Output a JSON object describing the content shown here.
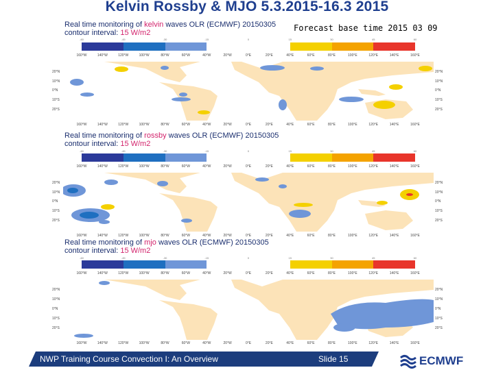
{
  "slide": {
    "title": "Kelvin Rossby & MJO 5.3.2015-16.3 2015",
    "forecast_label": "Forecast base time 2015 03 09",
    "footer_text": "NWP Training Course Convection I: An Overview",
    "slide_number": "Slide 15",
    "logo_text": "ECMWF"
  },
  "panels": [
    {
      "id": "kelvin",
      "head_prefix": "Real time monitoring of ",
      "kind": "kelvin",
      "head_suffix": " waves OLR (ECMWF) 20150305",
      "contour_prefix": "contour interval: ",
      "unit": "15 W/m2"
    },
    {
      "id": "rossby",
      "head_prefix": "Real time monitoring of ",
      "kind": "rossby",
      "head_suffix": " waves OLR (ECMWF) 20150305",
      "contour_prefix": "contour interval: ",
      "unit": "15 W/m2"
    },
    {
      "id": "mjo",
      "head_prefix": "Real time monitoring of ",
      "kind": "mjo",
      "head_suffix": " waves OLR (ECMWF) 20150305",
      "contour_prefix": "contour interval: ",
      "unit": "15 W/m2"
    }
  ],
  "colorbar": {
    "colors": [
      "#2b3a9a",
      "#1f6fc0",
      "#6f96d8",
      "#ffffff",
      "#ffffff",
      "#f4d000",
      "#f4a300",
      "#e8352b"
    ],
    "ticks": [
      "-60",
      "-45",
      "-30",
      "-15",
      "0",
      "15",
      "30",
      "45",
      "60"
    ]
  },
  "map": {
    "lon_labels": [
      "160°W",
      "140°W",
      "120°W",
      "100°W",
      "80°W",
      "60°W",
      "40°W",
      "20°W",
      "0°E",
      "20°E",
      "40°E",
      "60°E",
      "80°E",
      "100°E",
      "120°E",
      "140°E",
      "160°E"
    ],
    "lat_labels_left": [
      "20°N",
      "10°N",
      "0°N",
      "10°S",
      "20°S"
    ],
    "lat_labels_right": [
      "20°N",
      "10°N",
      "0°N",
      "10°S",
      "20°S"
    ],
    "land_color": "#fce3b8"
  }
}
